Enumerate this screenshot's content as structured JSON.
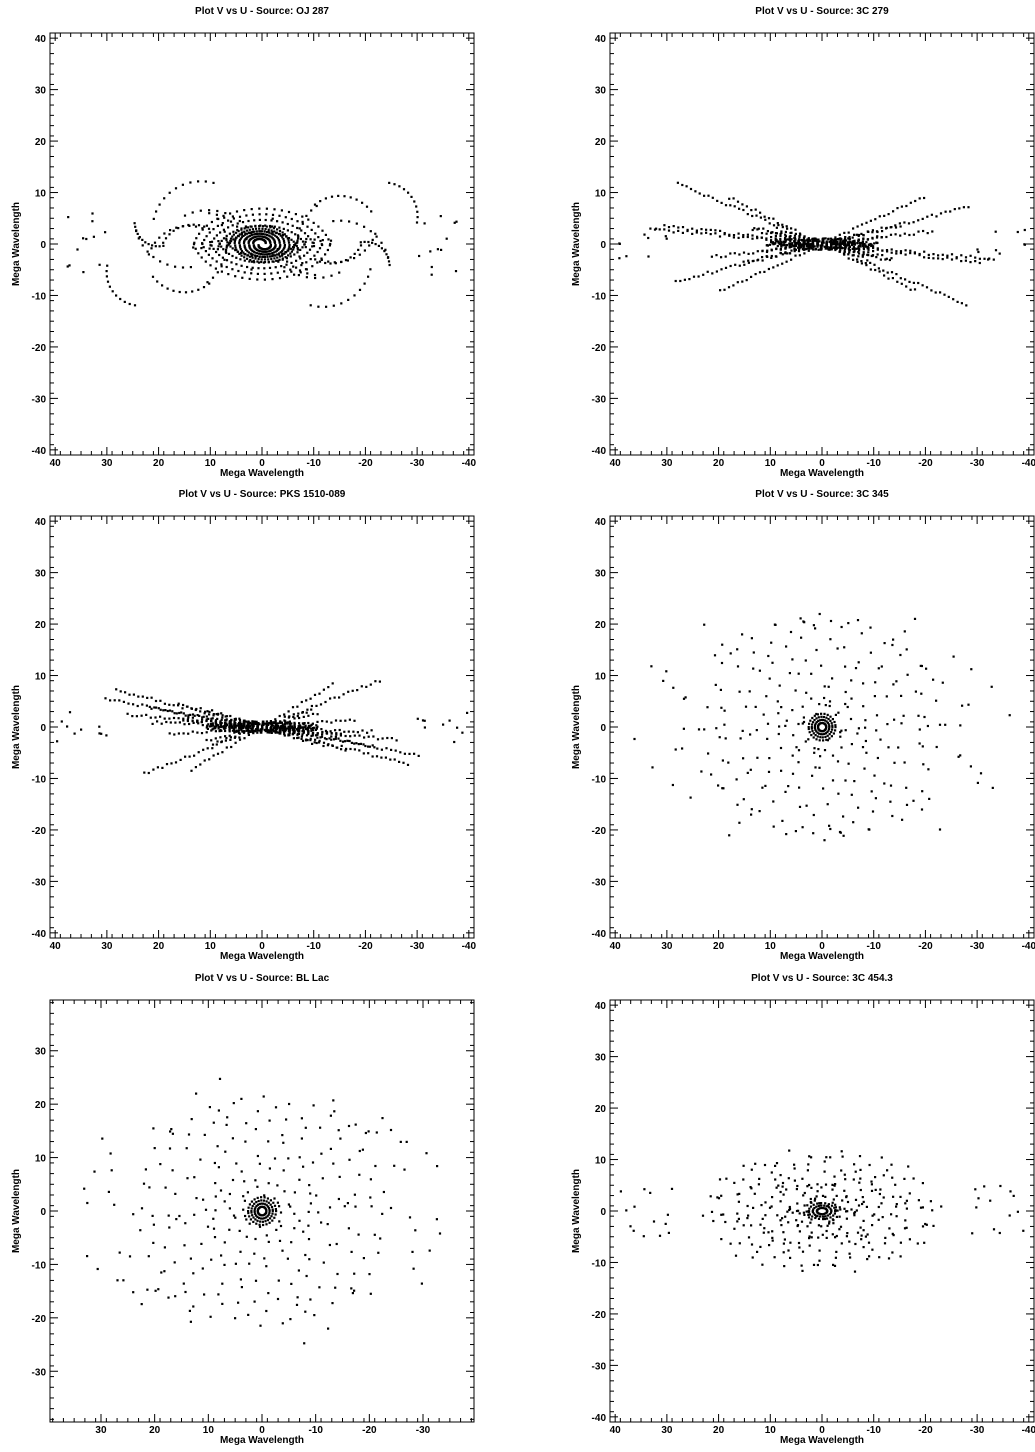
{
  "chart_data": [
    {
      "type": "scatter",
      "title": "Plot V vs U - Source: OJ 287",
      "xlabel": "Mega Wavelength",
      "ylabel": "Mega Wavelength",
      "xlim": [
        41,
        -41
      ],
      "ylim": [
        -41,
        41
      ],
      "xticks": [
        40,
        30,
        20,
        10,
        0,
        -10,
        -20,
        -30,
        -40
      ],
      "yticks": [
        -40,
        -30,
        -20,
        -10,
        0,
        10,
        20,
        30,
        40
      ],
      "pattern": "oj287"
    },
    {
      "type": "scatter",
      "title": "Plot V vs U - Source: 3C 279",
      "xlabel": "Mega Wavelength",
      "ylabel": "Mega Wavelength",
      "xlim": [
        41,
        -41
      ],
      "ylim": [
        -41,
        41
      ],
      "xticks": [
        40,
        30,
        20,
        10,
        0,
        -10,
        -20,
        -30,
        -40
      ],
      "yticks": [
        -40,
        -30,
        -20,
        -10,
        0,
        10,
        20,
        30,
        40
      ],
      "pattern": "xshape"
    },
    {
      "type": "scatter",
      "title": "Plot V vs U - Source: PKS 1510-089",
      "xlabel": "Mega Wavelength",
      "ylabel": "Mega Wavelength",
      "xlim": [
        41,
        -41
      ],
      "ylim": [
        -41,
        41
      ],
      "xticks": [
        40,
        30,
        20,
        10,
        0,
        -10,
        -20,
        -30,
        -40
      ],
      "yticks": [
        -40,
        -30,
        -20,
        -10,
        0,
        10,
        20,
        30,
        40
      ],
      "pattern": "xshape2"
    },
    {
      "type": "scatter",
      "title": "Plot V vs U - Source: 3C 345",
      "xlabel": "Mega Wavelength",
      "ylabel": "Mega Wavelength",
      "xlim": [
        41,
        -41
      ],
      "ylim": [
        -41,
        41
      ],
      "xticks": [
        40,
        30,
        20,
        10,
        0,
        -10,
        -20,
        -30,
        -40
      ],
      "yticks": [
        -40,
        -30,
        -20,
        -10,
        0,
        10,
        20,
        30,
        40
      ],
      "pattern": "circular"
    },
    {
      "type": "scatter",
      "title": "Plot V vs U - Source: BL Lac",
      "xlabel": "Mega Wavelength",
      "ylabel": "Mega Wavelength",
      "xlim": [
        39.5,
        -39.5
      ],
      "ylim": [
        -39.5,
        39.5
      ],
      "xticks": [
        30,
        20,
        10,
        0,
        -10,
        -20,
        -30
      ],
      "yticks": [
        -30,
        -20,
        -10,
        0,
        10,
        20,
        30
      ],
      "pattern": "circular2"
    },
    {
      "type": "scatter",
      "title": "Plot V vs U - Source: 3C 454.3",
      "xlabel": "Mega Wavelength",
      "ylabel": "Mega Wavelength",
      "xlim": [
        41,
        -41
      ],
      "ylim": [
        -41,
        41
      ],
      "xticks": [
        40,
        30,
        20,
        10,
        0,
        -10,
        -20,
        -30,
        -40
      ],
      "yticks": [
        -40,
        -30,
        -20,
        -10,
        0,
        10,
        20,
        30,
        40
      ],
      "pattern": "ellipse"
    }
  ]
}
